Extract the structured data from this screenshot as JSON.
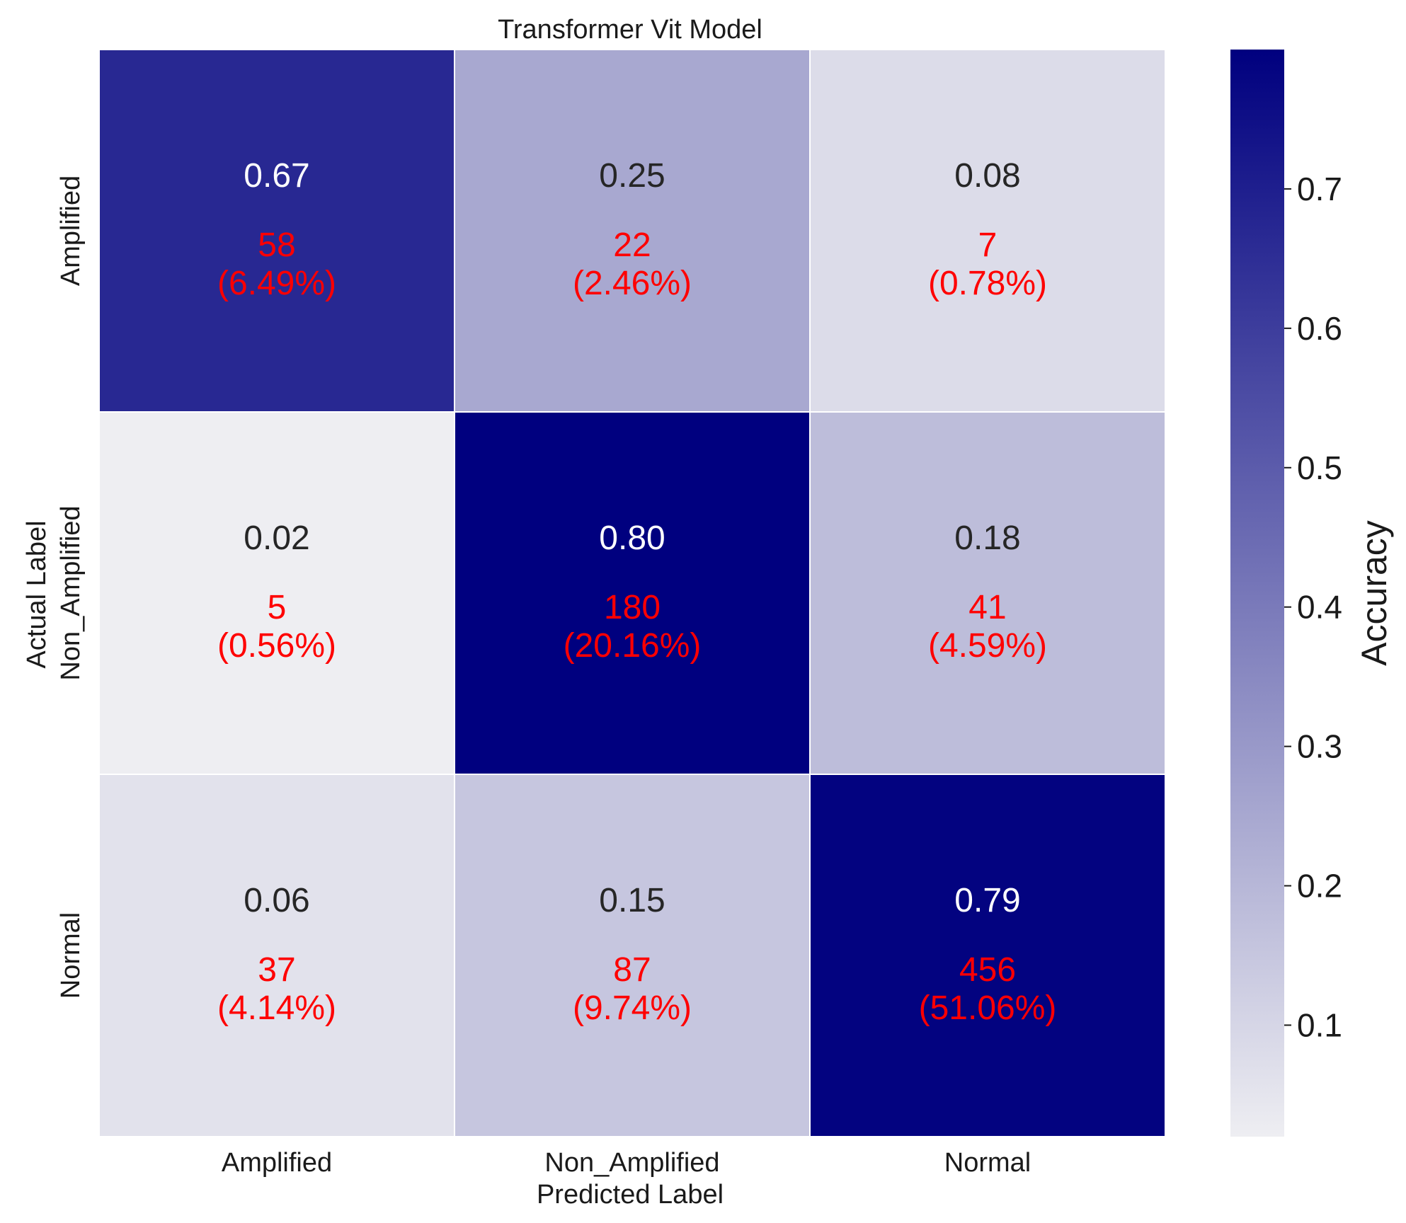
{
  "chart_data": {
    "type": "heatmap",
    "title": "Transformer Vit Model",
    "xlabel": "Predicted Label",
    "ylabel": "Actual Label",
    "x_categories": [
      "Amplified",
      "Non_Amplified",
      "Normal"
    ],
    "y_categories": [
      "Amplified",
      "Non_Amplified",
      "Normal"
    ],
    "values": [
      [
        0.67,
        0.25,
        0.08
      ],
      [
        0.02,
        0.8,
        0.18
      ],
      [
        0.06,
        0.15,
        0.79
      ]
    ],
    "value_labels": [
      [
        "0.67",
        "0.25",
        "0.08"
      ],
      [
        "0.02",
        "0.80",
        "0.18"
      ],
      [
        "0.06",
        "0.15",
        "0.79"
      ]
    ],
    "counts": [
      [
        "58",
        "22",
        "7"
      ],
      [
        "5",
        "180",
        "41"
      ],
      [
        "37",
        "87",
        "456"
      ]
    ],
    "percentages": [
      [
        "(6.49%)",
        "(2.46%)",
        "(0.78%)"
      ],
      [
        "(0.56%)",
        "(20.16%)",
        "(4.59%)"
      ],
      [
        "(4.14%)",
        "(9.74%)",
        "(51.06%)"
      ]
    ],
    "colorbar": {
      "label": "Accuracy",
      "range": [
        0.02,
        0.8
      ],
      "ticks": [
        0.1,
        0.2,
        0.3,
        0.4,
        0.5,
        0.6,
        0.7
      ],
      "tick_labels": [
        "0.1",
        "0.2",
        "0.3",
        "0.4",
        "0.5",
        "0.6",
        "0.7"
      ]
    },
    "colors": {
      "low": "#eeeef2",
      "high": "#00007f",
      "count_text": "#ff0000",
      "light_text": "#ffffff",
      "dark_text": "#262626"
    }
  }
}
